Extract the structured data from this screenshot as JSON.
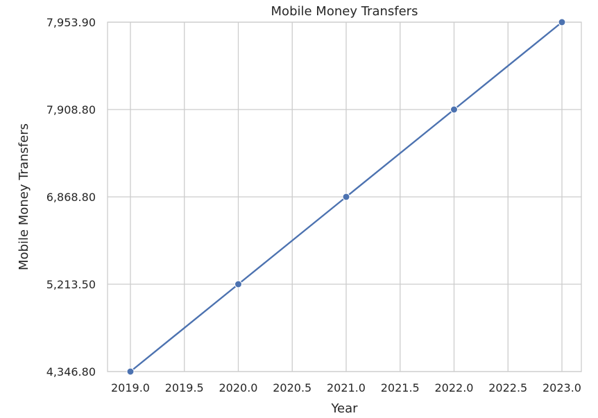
{
  "chart_data": {
    "type": "line",
    "title": "Mobile Money Transfers",
    "xlabel": "Year",
    "ylabel": "Mobile Money Transfers",
    "x": [
      2019,
      2020,
      2021,
      2022,
      2023
    ],
    "series": [
      {
        "values": [
          4346.8,
          5213.5,
          6868.8,
          7908.8,
          7953.9
        ],
        "color": "#4c72b0"
      }
    ],
    "xticks": [
      2019.0,
      2019.5,
      2020.0,
      2020.5,
      2021.0,
      2021.5,
      2022.0,
      2022.5,
      2023.0
    ],
    "xtick_labels": [
      "2019.0",
      "2019.5",
      "2020.0",
      "2020.5",
      "2021.0",
      "2021.5",
      "2022.0",
      "2022.5",
      "2023.0"
    ],
    "yticks": [
      4346.8,
      5213.5,
      6868.8,
      7908.8,
      7953.9
    ],
    "ytick_labels": [
      "4,346.80",
      "5,213.50",
      "6,868.80",
      "7,908.80",
      "7,953.90"
    ],
    "y_axis_note": "tick labels are evenly spaced categories matching the data values",
    "grid": true,
    "legend": "none"
  }
}
